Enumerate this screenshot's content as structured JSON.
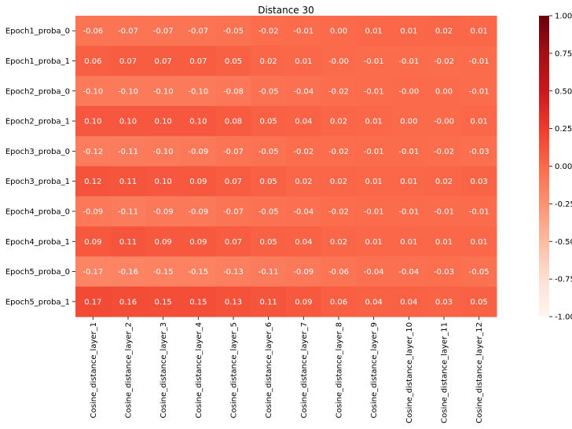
{
  "chart_data": {
    "type": "heatmap",
    "title": "Distance 30",
    "rows": [
      "Epoch1_proba_0",
      "Epoch1_proba_1",
      "Epoch2_proba_0",
      "Epoch2_proba_1",
      "Epoch3_proba_0",
      "Epoch3_proba_1",
      "Epoch4_proba_0",
      "Epoch4_proba_1",
      "Epoch5_proba_0",
      "Epoch5_proba_1"
    ],
    "columns": [
      "Cosine_distance_layer_1",
      "Cosine_distance_layer_2",
      "Cosine_distance_layer_3",
      "Cosine_distance_layer_4",
      "Cosine_distance_layer_5",
      "Cosine_distance_layer_6",
      "Cosine_distance_layer_7",
      "Cosine_distance_layer_8",
      "Cosine_distance_layer_9",
      "Cosine_distance_layer_10",
      "Cosine_distance_layer_11",
      "Cosine_distance_layer_12"
    ],
    "labels": [
      [
        "-0.06",
        "-0.07",
        "-0.07",
        "-0.07",
        "-0.05",
        "-0.02",
        "-0.01",
        "0.00",
        "0.01",
        "0.01",
        "0.02",
        "0.01"
      ],
      [
        "0.06",
        "0.07",
        "0.07",
        "0.07",
        "0.05",
        "0.02",
        "0.01",
        "-0.00",
        "-0.01",
        "-0.01",
        "-0.02",
        "-0.01"
      ],
      [
        "-0.10",
        "-0.10",
        "-0.10",
        "-0.10",
        "-0.08",
        "-0.05",
        "-0.04",
        "-0.02",
        "-0.01",
        "-0.00",
        "0.00",
        "-0.01"
      ],
      [
        "0.10",
        "0.10",
        "0.10",
        "0.10",
        "0.08",
        "0.05",
        "0.04",
        "0.02",
        "0.01",
        "0.00",
        "-0.00",
        "0.01"
      ],
      [
        "-0.12",
        "-0.11",
        "-0.10",
        "-0.09",
        "-0.07",
        "-0.05",
        "-0.02",
        "-0.02",
        "-0.01",
        "-0.01",
        "-0.02",
        "-0.03"
      ],
      [
        "0.12",
        "0.11",
        "0.10",
        "0.09",
        "0.07",
        "0.05",
        "0.02",
        "0.02",
        "0.01",
        "0.01",
        "0.02",
        "0.03"
      ],
      [
        "-0.09",
        "-0.11",
        "-0.09",
        "-0.09",
        "-0.07",
        "-0.05",
        "-0.04",
        "-0.02",
        "-0.01",
        "-0.01",
        "-0.01",
        "-0.01"
      ],
      [
        "0.09",
        "0.11",
        "0.09",
        "0.09",
        "0.07",
        "0.05",
        "0.04",
        "0.02",
        "0.01",
        "0.01",
        "0.01",
        "0.01"
      ],
      [
        "-0.17",
        "-0.16",
        "-0.15",
        "-0.15",
        "-0.13",
        "-0.11",
        "-0.09",
        "-0.06",
        "-0.04",
        "-0.04",
        "-0.03",
        "-0.05"
      ],
      [
        "0.17",
        "0.16",
        "0.15",
        "0.15",
        "0.13",
        "0.11",
        "0.09",
        "0.06",
        "0.04",
        "0.04",
        "0.03",
        "0.05"
      ]
    ],
    "colorbar": {
      "min": -1.0,
      "max": 1.0,
      "ticks": [
        "1.00",
        "0.75",
        "0.50",
        "0.25",
        "0.00",
        "-0.25",
        "-0.50",
        "-0.75",
        "-1.00"
      ],
      "colormap": "Reds"
    },
    "colors": {
      "stops": [
        "#fff5f0",
        "#fee0d2",
        "#fcbba1",
        "#fc9272",
        "#fb6a4a",
        "#ef3b2c",
        "#cb181d",
        "#a50f15",
        "#67000d"
      ]
    }
  }
}
